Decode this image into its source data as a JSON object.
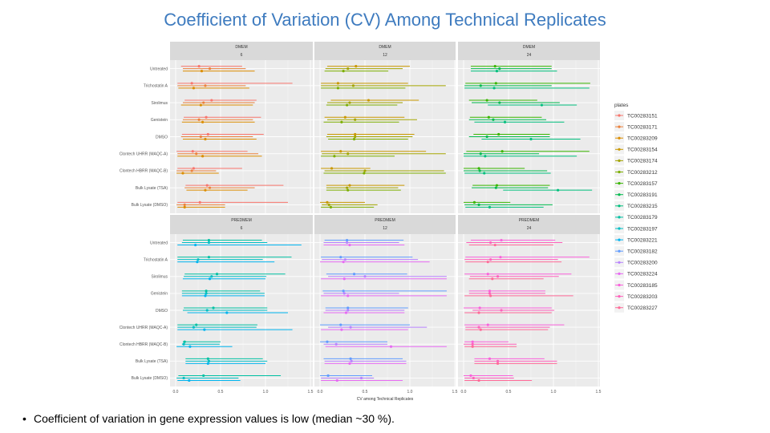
{
  "slide": {
    "title": "Coefficient of Variation (CV) Among Technical Replicates",
    "bullet": "Coefficient of variation in gene expression values is low (median ~30 %)."
  },
  "chart_data": {
    "type": "faceted range/point plot",
    "xlabel": "CV among Technical Replicates",
    "xlim": [
      0,
      1.5
    ],
    "xticks": [
      "0.0",
      "0.5",
      "1.0",
      "1.5"
    ],
    "grid": true,
    "legend_title": "plates",
    "legend_position": "right",
    "categories": [
      "Untreated",
      "Trichostatin A",
      "Sirolimus",
      "Genistein",
      "DMSO",
      "Clontech UHRR (MAQC-A)",
      "Clontech HBRR (MAQC-B)",
      "Bulk Lysate (TSA)",
      "Bulk Lysate (DMSO)"
    ],
    "plates": [
      {
        "name": "TC00283151",
        "color": "#F8766D"
      },
      {
        "name": "TC00283171",
        "color": "#EC823C"
      },
      {
        "name": "TC00283209",
        "color": "#DC8D00"
      },
      {
        "name": "TC00283154",
        "color": "#C99800"
      },
      {
        "name": "TC00283174",
        "color": "#A3A500"
      },
      {
        "name": "TC00283212",
        "color": "#7CAE00"
      },
      {
        "name": "TC00283157",
        "color": "#39B600"
      },
      {
        "name": "TC00283191",
        "color": "#00BB4E"
      },
      {
        "name": "TC00283215",
        "color": "#00BF7D"
      },
      {
        "name": "TC00283179",
        "color": "#00C1A3"
      },
      {
        "name": "TC00283197",
        "color": "#00BFC4"
      },
      {
        "name": "TC00283221",
        "color": "#00B4EF"
      },
      {
        "name": "TC00283182",
        "color": "#619CFF"
      },
      {
        "name": "TC00283200",
        "color": "#B983FF"
      },
      {
        "name": "TC00283224",
        "color": "#E76BF3"
      },
      {
        "name": "TC00283185",
        "color": "#FA62DB"
      },
      {
        "name": "TC00283203",
        "color": "#FF62BC"
      },
      {
        "name": "TC00283227",
        "color": "#FF6A98"
      }
    ],
    "value_format": "each entry is [min, median, max] CV per plate",
    "facets": [
      {
        "medium": "DMEM",
        "time": "6",
        "plates": [
          0,
          1,
          2
        ],
        "rows": [
          [
            [
              0.06,
              0.26,
              0.74
            ],
            [
              0.08,
              0.38,
              0.78
            ],
            [
              0.08,
              0.29,
              0.88
            ]
          ],
          [
            [
              0.02,
              0.18,
              1.3
            ],
            [
              0.02,
              0.33,
              0.78
            ],
            [
              0.03,
              0.2,
              0.82
            ]
          ],
          [
            [
              0.1,
              0.4,
              0.9
            ],
            [
              0.08,
              0.31,
              0.88
            ],
            [
              0.06,
              0.28,
              0.86
            ]
          ],
          [
            [
              0.09,
              0.34,
              0.95
            ],
            [
              0.08,
              0.26,
              0.86
            ],
            [
              0.07,
              0.3,
              0.88
            ]
          ],
          [
            [
              0.07,
              0.36,
              0.98
            ],
            [
              0.06,
              0.28,
              0.86
            ],
            [
              0.08,
              0.33,
              0.9
            ]
          ],
          [
            [
              0.01,
              0.19,
              0.8
            ],
            [
              0.02,
              0.23,
              0.92
            ],
            [
              0.02,
              0.3,
              0.96
            ]
          ],
          [
            [
              0.02,
              0.2,
              0.74
            ],
            [
              0.01,
              0.18,
              0.45
            ],
            [
              0.01,
              0.08,
              0.48
            ]
          ],
          [
            [
              0.11,
              0.35,
              1.2
            ],
            [
              0.1,
              0.38,
              0.88
            ],
            [
              0.12,
              0.33,
              0.8
            ]
          ],
          [
            [
              0.02,
              0.27,
              1.25
            ],
            [
              0.01,
              0.1,
              0.55
            ],
            [
              0.02,
              0.1,
              0.55
            ]
          ]
        ]
      },
      {
        "medium": "DMEM",
        "time": "12",
        "plates": [
          3,
          4,
          5
        ],
        "rows": [
          [
            [
              0.08,
              0.4,
              1.0
            ],
            [
              0.06,
              0.31,
              0.92
            ],
            [
              0.05,
              0.26,
              0.76
            ]
          ],
          [
            [
              0.01,
              0.2,
              0.98
            ],
            [
              0.01,
              0.37,
              1.4
            ],
            [
              0.01,
              0.2,
              0.95
            ]
          ],
          [
            [
              0.12,
              0.54,
              1.1
            ],
            [
              0.08,
              0.33,
              0.92
            ],
            [
              0.07,
              0.3,
              0.86
            ]
          ],
          [
            [
              0.05,
              0.28,
              0.94
            ],
            [
              0.08,
              0.39,
              1.08
            ],
            [
              0.04,
              0.24,
              0.88
            ]
          ],
          [
            [
              0.08,
              0.39,
              1.05
            ],
            [
              0.07,
              0.39,
              1.03
            ],
            [
              0.09,
              0.38,
              0.98
            ]
          ],
          [
            [
              0.01,
              0.23,
              1.18
            ],
            [
              0.02,
              0.31,
              1.4
            ],
            [
              0.01,
              0.16,
              0.83
            ]
          ],
          [
            [
              0.01,
              0.13,
              0.56
            ],
            [
              0.05,
              0.5,
              1.38
            ],
            [
              0.04,
              0.49,
              1.4
            ]
          ],
          [
            [
              0.07,
              0.33,
              0.94
            ],
            [
              0.07,
              0.3,
              0.87
            ],
            [
              0.07,
              0.31,
              0.9
            ]
          ],
          [
            [
              0.0,
              0.08,
              0.5
            ],
            [
              0.02,
              0.1,
              0.64
            ],
            [
              0.01,
              0.12,
              0.6
            ]
          ]
        ]
      },
      {
        "medium": "DMEM",
        "time": "24",
        "plates": [
          6,
          7,
          8
        ],
        "rows": [
          [
            [
              0.08,
              0.35,
              0.98
            ],
            [
              0.08,
              0.4,
              0.98
            ],
            [
              0.08,
              0.37,
              1.04
            ]
          ],
          [
            [
              0.02,
              0.36,
              1.41
            ],
            [
              0.01,
              0.19,
              0.98
            ],
            [
              0.01,
              0.34,
              1.4
            ]
          ],
          [
            [
              0.06,
              0.26,
              0.82
            ],
            [
              0.09,
              0.4,
              1.07
            ],
            [
              0.27,
              0.87,
              1.26
            ]
          ],
          [
            [
              0.07,
              0.28,
              0.87
            ],
            [
              0.06,
              0.33,
              0.92
            ],
            [
              0.12,
              0.46,
              1.12
            ]
          ],
          [
            [
              0.11,
              0.39,
              0.96
            ],
            [
              0.06,
              0.26,
              0.96
            ],
            [
              0.2,
              0.75,
              1.3
            ]
          ],
          [
            [
              0.03,
              0.43,
              1.4
            ],
            [
              0.0,
              0.19,
              0.84
            ],
            [
              0.0,
              0.24,
              1.26
            ]
          ],
          [
            [
              0.0,
              0.17,
              0.68
            ],
            [
              0.0,
              0.18,
              0.93
            ],
            [
              0.01,
              0.23,
              0.97
            ]
          ],
          [
            [
              0.1,
              0.37,
              0.96
            ],
            [
              0.09,
              0.36,
              0.94
            ],
            [
              0.44,
              1.05,
              1.43
            ]
          ],
          [
            [
              0.0,
              0.12,
              0.52
            ],
            [
              0.01,
              0.17,
              0.99
            ],
            [
              0.02,
              0.29,
              0.89
            ]
          ]
        ]
      },
      {
        "medium": "PREDMEM",
        "time": "6",
        "plates": [
          9,
          10,
          11
        ],
        "rows": [
          [
            [
              0.08,
              0.37,
              0.96
            ],
            [
              0.07,
              0.37,
              1.02
            ],
            [
              0.02,
              0.22,
              1.4
            ]
          ],
          [
            [
              0.02,
              0.37,
              1.29
            ],
            [
              0.02,
              0.25,
              0.97
            ],
            [
              0.02,
              0.24,
              1.1
            ]
          ],
          [
            [
              0.1,
              0.46,
              1.22
            ],
            [
              0.09,
              0.4,
              1.01
            ],
            [
              0.08,
              0.38,
              1.0
            ]
          ],
          [
            [
              0.07,
              0.34,
              0.94
            ],
            [
              0.07,
              0.34,
              0.99
            ],
            [
              0.07,
              0.33,
              0.99
            ]
          ],
          [
            [
              0.09,
              0.42,
              1.02
            ],
            [
              0.08,
              0.35,
              1.02
            ],
            [
              0.13,
              0.57,
              1.25
            ]
          ],
          [
            [
              0.02,
              0.23,
              0.91
            ],
            [
              0.02,
              0.2,
              0.9
            ],
            [
              0.02,
              0.32,
              1.3
            ]
          ],
          [
            [
              0.08,
              0.1,
              0.5
            ],
            [
              0.07,
              0.09,
              0.49
            ],
            [
              0.01,
              0.16,
              0.63
            ]
          ],
          [
            [
              0.11,
              0.36,
              0.97
            ],
            [
              0.11,
              0.37,
              1.02
            ],
            [
              0.11,
              0.36,
              1.0
            ]
          ],
          [
            [
              0.03,
              0.31,
              1.17
            ],
            [
              0.01,
              0.09,
              0.7
            ],
            [
              0.02,
              0.15,
              0.72
            ]
          ]
        ]
      },
      {
        "medium": "PREDMEM",
        "time": "12",
        "plates": [
          12,
          13,
          14
        ],
        "rows": [
          [
            [
              0.05,
              0.3,
              0.93
            ],
            [
              0.04,
              0.3,
              0.88
            ],
            [
              0.04,
              0.33,
              0.94
            ]
          ],
          [
            [
              0.01,
              0.23,
              1.03
            ],
            [
              0.02,
              0.28,
              1.09
            ],
            [
              0.0,
              0.26,
              1.22
            ]
          ],
          [
            [
              0.07,
              0.38,
              0.97
            ],
            [
              0.09,
              0.5,
              1.41
            ],
            [
              0.01,
              0.27,
              1.41
            ]
          ],
          [
            [
              0.03,
              0.26,
              1.41
            ],
            [
              0.04,
              0.27,
              0.88
            ],
            [
              0.01,
              0.31,
              1.41
            ]
          ],
          [
            [
              0.06,
              0.31,
              0.98
            ],
            [
              0.06,
              0.31,
              0.94
            ],
            [
              0.04,
              0.29,
              0.94
            ]
          ],
          [
            [
              0.0,
              0.23,
              1.0
            ],
            [
              0.09,
              0.34,
              1.19
            ],
            [
              0.01,
              0.24,
              0.98
            ]
          ],
          [
            [
              0.0,
              0.08,
              0.75
            ],
            [
              0.04,
              0.18,
              0.75
            ],
            [
              0.06,
              0.79,
              1.41
            ]
          ],
          [
            [
              0.04,
              0.34,
              0.92
            ],
            [
              0.05,
              0.35,
              0.96
            ],
            [
              0.05,
              0.33,
              0.96
            ]
          ],
          [
            [
              0.0,
              0.09,
              0.58
            ],
            [
              0.01,
              0.46,
              0.6
            ],
            [
              0.01,
              0.19,
              0.92
            ]
          ]
        ]
      },
      {
        "medium": "PREDMEM",
        "time": "24",
        "plates": [
          15,
          16,
          17
        ],
        "rows": [
          [
            [
              0.08,
              0.42,
              1.02
            ],
            [
              0.03,
              0.3,
              1.1
            ],
            [
              0.06,
              0.35,
              1.0
            ]
          ],
          [
            [
              0.02,
              0.41,
              1.4
            ],
            [
              0.01,
              0.3,
              1.05
            ],
            [
              0.02,
              0.27,
              1.09
            ]
          ],
          [
            [
              0.01,
              0.27,
              1.2
            ],
            [
              0.07,
              0.38,
              1.06
            ],
            [
              0.06,
              0.32,
              0.89
            ]
          ],
          [
            [
              0.06,
              0.29,
              0.91
            ],
            [
              0.06,
              0.29,
              0.91
            ],
            [
              0.01,
              0.3,
              1.22
            ]
          ],
          [
            [
              0.0,
              0.18,
              0.98
            ],
            [
              0.1,
              0.42,
              1.01
            ],
            [
              0.01,
              0.17,
              0.98
            ]
          ],
          [
            [
              0.01,
              0.27,
              1.12
            ],
            [
              0.02,
              0.17,
              0.96
            ],
            [
              0.02,
              0.19,
              0.94
            ]
          ],
          [
            [
              0.01,
              0.1,
              0.5
            ],
            [
              0.0,
              0.1,
              0.59
            ],
            [
              0.01,
              0.1,
              0.59
            ]
          ],
          [
            [
              0.12,
              0.29,
              0.9
            ],
            [
              0.12,
              0.38,
              1.04
            ],
            [
              0.12,
              0.38,
              1.04
            ]
          ],
          [
            [
              0.0,
              0.08,
              0.55
            ],
            [
              0.01,
              0.11,
              0.56
            ],
            [
              0.01,
              0.17,
              0.76
            ]
          ]
        ]
      }
    ]
  }
}
